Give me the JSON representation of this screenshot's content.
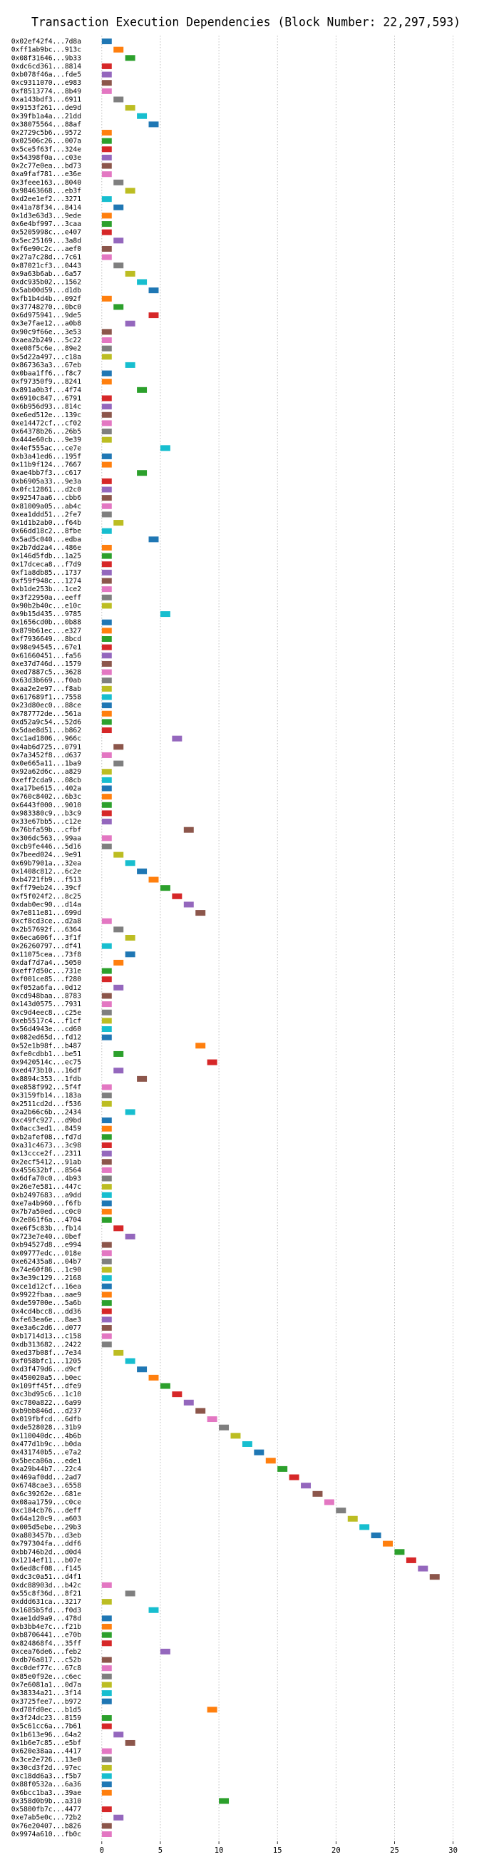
{
  "chart_data": {
    "type": "gantt",
    "title": "Transaction Execution Dependencies (Block Number: 22,297,593)",
    "colors": [
      "#1f77b4",
      "#ff7f0e",
      "#2ca02c",
      "#d62728",
      "#9467bd",
      "#8c564b",
      "#e377c2",
      "#7f7f7f",
      "#bcbd22",
      "#17becf"
    ],
    "xlim": [
      -1.45,
      30.45
    ],
    "xticks": [
      0,
      5,
      10,
      15,
      20,
      25,
      30
    ],
    "grid": true,
    "categories": [
      "0x02ef42f4...7d8a",
      "0xff1ab9bc...913c",
      "0x08f31646...9b33",
      "0xdc6cd361...8814",
      "0xb078f46a...fde5",
      "0xc9311070...e983",
      "0xf8513774...8b49",
      "0xa143bdf3...6911",
      "0x9153f261...de9d",
      "0x39fb1a4a...21dd",
      "0x38075564...88af",
      "0x2729c5b6...9572",
      "0x02506c26...007a",
      "0x5ce5f63f...324e",
      "0x54398f0a...c03e",
      "0x2c77e0ea...bd73",
      "0xa9faf781...e36e",
      "0x3feee163...8040",
      "0x98463668...eb3f",
      "0xd2ee1ef2...3271",
      "0x41a78f34...8414",
      "0x1d3e63d3...9ede",
      "0x6e4bf997...3caa",
      "0x5205998c...e407",
      "0x5ec25169...3a8d",
      "0xf6e90c2c...aef0",
      "0x27a7c28d...7c61",
      "0x87021cf3...0443",
      "0x9a63b6ab...6a57",
      "0xdc935b02...1562",
      "0x5ab00d59...d1db",
      "0xfb1b4d4b...092f",
      "0x37748270...0bc0",
      "0x6d975941...9de5",
      "0x3e7fae12...a0b8",
      "0x90c9f66e...3e53",
      "0xaea2b249...5c22",
      "0xe08f5c6e...89e2",
      "0x5d22a497...c18a",
      "0x867363a3...67eb",
      "0x0baa1ff6...f8c7",
      "0xf97350f9...8241",
      "0x891a0b3f...4f74",
      "0x6910c847...6791",
      "0x6b956d93...814c",
      "0xe6ed512e...139c",
      "0xe14472cf...cf02",
      "0x64378b26...26b5",
      "0x444e60cb...9e39",
      "0x4ef555ac...ce7e",
      "0xb3a41ed6...195f",
      "0x11b9f124...7667",
      "0xae4bb7f3...c617",
      "0xb6905a33...9e3a",
      "0x0fc12861...d2c0",
      "0x92547aa6...cbb6",
      "0x81009a05...ab4c",
      "0xea1ddd51...2fe7",
      "0x1d1b2ab0...f64b",
      "0x66dd18c2...8fbe",
      "0x5ad5c040...edba",
      "0x2b7dd2a4...486e",
      "0x146d5fdb...1a25",
      "0x17dceca8...f7d9",
      "0xf1a8db85...1737",
      "0xf59f948c...1274",
      "0xb1de253b...1ce2",
      "0x3f22950a...eeff",
      "0x90b2b40c...e10c",
      "0x9b15d435...9785",
      "0x1656cd0b...0b88",
      "0x879b61ec...e327",
      "0xf7936649...8bcd",
      "0x98e94545...67e1",
      "0x61660451...fa56",
      "0xe37d746d...1579",
      "0xed7887c5...3628",
      "0x63d3b669...f0ab",
      "0xaa2e2e97...f8ab",
      "0x617689f1...7558",
      "0x23d80ec0...88ce",
      "0x787772de...561a",
      "0xd52a9c54...52d6",
      "0x5dae8d51...b862",
      "0xc1ad1806...966c",
      "0x4ab6d725...0791",
      "0x7a3452f8...d637",
      "0x0e665a11...1ba9",
      "0x92a62d6c...a829",
      "0xeff2cda9...08cb",
      "0xa17be615...402a",
      "0x760c8402...6b3c",
      "0x6443f000...9010",
      "0x983380c9...b3c9",
      "0x33e67bb5...c12e",
      "0x76bfa59b...cfbf",
      "0x306dc563...99aa",
      "0xcb9fe446...5d16",
      "0x7beed024...9e91",
      "0x69b7901a...32ea",
      "0x1408c812...6c2e",
      "0xb4721fb9...f513",
      "0xff79eb24...39cf",
      "0xf5f024f2...8c25",
      "0xdab0ec90...d14a",
      "0x7e811e81...699d",
      "0xcf8cd3ce...d2a8",
      "0x2b57692f...6364",
      "0x6eca606f...3f1f",
      "0x26260797...df41",
      "0x11075cea...73f8",
      "0xdaf7d7a4...5050",
      "0xeff7d50c...731e",
      "0xf001ce85...f280",
      "0xf052a6fa...0d12",
      "0xcd948baa...8783",
      "0x143d0575...7931",
      "0xc9d4eec8...c25e",
      "0xeb5517c4...f1cf",
      "0x56d4943e...cd60",
      "0x082ed65d...fd12",
      "0x52e1b98f...b487",
      "0xfe0cdbb1...be51",
      "0x9420514c...ec75",
      "0xed473b10...16df",
      "0x8894c353...1fdb",
      "0xe858f992...5f4f",
      "0x3159fb14...183a",
      "0x2511cd2d...f536",
      "0xa2b66c6b...2434",
      "0xc49fc927...d9bd",
      "0x0acc3ed1...8459",
      "0xb2afef08...fd7d",
      "0xa31c4673...3c98",
      "0x13ccce2f...2311",
      "0x2ecf5412...91ab",
      "0x455632bf...8564",
      "0x6dfa70c0...4b93",
      "0x26e7e581...447c",
      "0xb2497683...a9dd",
      "0xe7a4b960...f6fb",
      "0x7b7a50ed...c0c0",
      "0x2e861f6a...4704",
      "0xe6f5c83b...fb14",
      "0x723e7e40...0bef",
      "0xb94527d8...e994",
      "0x09777edc...018e",
      "0xe62435a8...04b7",
      "0x74e60f86...1c90",
      "0x3e39c129...2168",
      "0xce1d12cf...16ea",
      "0x9922fbaa...aae9",
      "0xde59700e...5a6b",
      "0x4cd4bcc8...dd36",
      "0xfe63ea6e...8ae3",
      "0xe3a6c2d6...d077",
      "0xb1714d13...c158",
      "0xdb313682...2422",
      "0xed37b08f...7e34",
      "0xf058bfc1...1205",
      "0xd3f479d6...d9cf",
      "0x450020a5...b0ec",
      "0x109ff45f...dfe9",
      "0xc3bd95c6...1c10",
      "0xc780a822...6a99",
      "0xb9bb846d...d237",
      "0x019fbfcd...6dfb",
      "0xde528028...31b9",
      "0x110040dc...4b6b",
      "0x477d1b9c...b0da",
      "0x431740b5...e7a2",
      "0x5beca86a...ede1",
      "0xa29b44b7...22c4",
      "0x469af0dd...2ad7",
      "0x6748cae3...6558",
      "0x6c39262e...681e",
      "0x08aa1759...c0ce",
      "0xc184cb76...deff",
      "0x64a120c9...a603",
      "0x005d5ebe...29b3",
      "0xa803457b...d3eb",
      "0x797304fa...ddf6",
      "0xbb746b2d...d0d4",
      "0x1214ef11...b07e",
      "0x6ed8cf08...f145",
      "0xdc3c0a51...d4f1",
      "0xdc88903d...b42c",
      "0x55c8f36d...8f21",
      "0xddd631ca...3217",
      "0x1685b5fd...f0d3",
      "0xae1dd9a9...478d",
      "0xb3bb4e7c...f21b",
      "0xb8706441...e70b",
      "0x824868f4...35ff",
      "0xcea76de6...feb2",
      "0xdb76a817...c52b",
      "0xc0def77c...67c8",
      "0x85e0f92e...c6ec",
      "0x7e6081a1...0d7a",
      "0x38334a21...3f14",
      "0x3725fee7...b972",
      "0xd78fd0ec...b1d5",
      "0x3f24dc23...8159",
      "0x5c61cc6a...7b61",
      "0x1b613e96...64a2",
      "0x1b6e7c85...e5bf",
      "0x620e38aa...4417",
      "0x3ce2e726...13e0",
      "0x30cd3f2d...97ec",
      "0xc18dd6a3...f5b7",
      "0x88f0532a...6a36",
      "0x6bcc1ba3...39ae",
      "0x358d0b9b...a310",
      "0x5800fb7c...4477",
      "0xe7ab5e0c...72b2",
      "0x76e20407...b826",
      "0x9974a610...fb0c"
    ],
    "values": [
      0,
      1,
      2,
      0,
      0,
      0,
      0,
      1,
      2,
      3,
      4,
      0,
      0,
      0,
      0,
      0,
      0,
      1,
      2,
      0,
      1,
      0,
      0,
      0,
      1,
      0,
      0,
      1,
      2,
      3,
      4,
      0,
      1,
      4,
      2,
      0,
      0,
      0,
      0,
      2,
      0,
      0,
      3,
      0,
      0,
      0,
      0,
      0,
      0,
      5,
      0,
      0,
      3,
      0,
      0,
      0,
      0,
      0,
      1,
      0,
      4,
      0,
      0,
      0,
      0,
      0,
      0,
      0,
      0,
      5,
      0,
      0,
      0,
      0,
      0,
      0,
      0,
      0,
      0,
      0,
      0,
      0,
      0,
      0,
      6,
      1,
      0,
      1,
      0,
      0,
      0,
      0,
      0,
      0,
      0,
      7,
      0,
      0,
      1,
      2,
      3,
      4,
      5,
      6,
      7,
      8,
      0,
      1,
      2,
      0,
      2,
      1,
      0,
      0,
      1,
      0,
      0,
      0,
      0,
      0,
      0,
      8,
      1,
      9,
      1,
      3,
      0,
      0,
      0,
      2,
      0,
      0,
      0,
      0,
      0,
      0,
      0,
      0,
      0,
      0,
      0,
      0,
      0,
      1,
      2,
      0,
      0,
      0,
      0,
      0,
      0,
      0,
      0,
      0,
      0,
      0,
      0,
      0,
      1,
      2,
      3,
      4,
      5,
      6,
      7,
      8,
      9,
      10,
      11,
      12,
      13,
      14,
      15,
      16,
      17,
      18,
      19,
      20,
      21,
      22,
      23,
      24,
      25,
      26,
      27,
      28,
      0,
      2,
      0,
      4,
      0,
      0,
      0,
      0,
      5,
      0,
      0,
      0,
      0,
      0,
      0,
      9,
      0,
      0,
      1,
      2,
      0,
      0,
      0,
      0,
      0,
      0,
      10,
      0,
      1,
      0,
      0
    ]
  }
}
